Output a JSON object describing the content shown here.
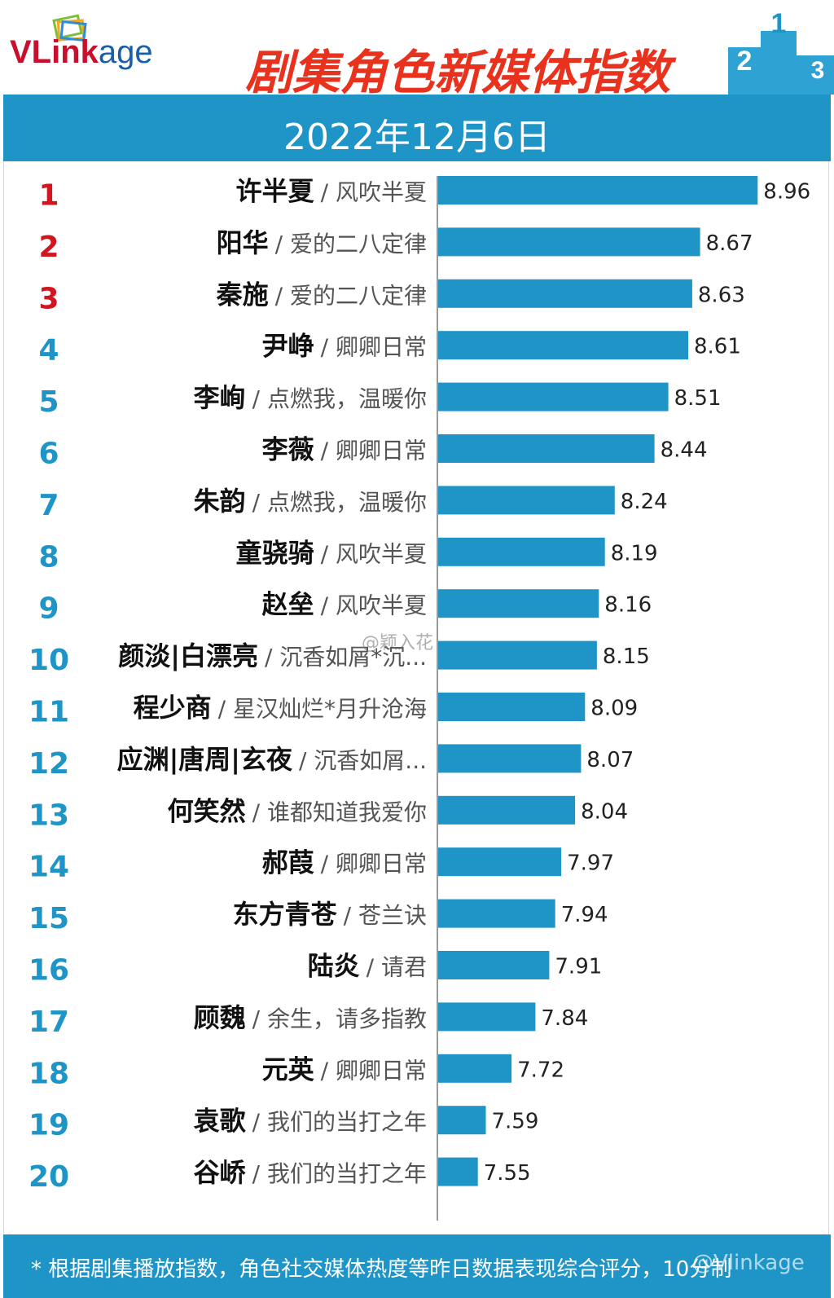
{
  "header": {
    "logo_text": "VLinkage",
    "logo_part1": "VLink",
    "logo_part2": "age",
    "title": "剧集角色新媒体指数",
    "date": "2022年12月6日",
    "podium_icon": "podium-icon"
  },
  "footer": {
    "note": "* 根据剧集播放指数，角色社交媒体热度等昨日数据表现综合评分，10分制"
  },
  "watermarks": {
    "mid": "@颖入花",
    "bottom": "@Vlinkage"
  },
  "colors": {
    "bar": "#1e95c6",
    "rank_top3": "#d1161f",
    "rank_rest": "#1e95c6",
    "title": "#e8321e"
  },
  "chart_data": {
    "type": "bar",
    "orientation": "horizontal",
    "title": "剧集角色新媒体指数",
    "xlim": [
      7.35,
      9.0
    ],
    "categories": [
      {
        "rank": "1",
        "name": "许半夏",
        "show": "/ 风吹半夏"
      },
      {
        "rank": "2",
        "name": "阳华",
        "show": "/ 爱的二八定律"
      },
      {
        "rank": "3",
        "name": "秦施",
        "show": "/ 爱的二八定律"
      },
      {
        "rank": "4",
        "name": "尹峥",
        "show": "/ 卿卿日常"
      },
      {
        "rank": "5",
        "name": "李峋",
        "show": "/ 点燃我，温暖你"
      },
      {
        "rank": "6",
        "name": "李薇",
        "show": "/ 卿卿日常"
      },
      {
        "rank": "7",
        "name": "朱韵",
        "show": "/ 点燃我，温暖你"
      },
      {
        "rank": "8",
        "name": "童骁骑",
        "show": "/ 风吹半夏"
      },
      {
        "rank": "9",
        "name": "赵垒",
        "show": "/ 风吹半夏"
      },
      {
        "rank": "10",
        "name": "颜淡|白漂亮",
        "show": "/ 沉香如屑*沉..."
      },
      {
        "rank": "11",
        "name": "程少商",
        "show": "/ 星汉灿烂*月升沧海"
      },
      {
        "rank": "12",
        "name": "应渊|唐周|玄夜",
        "show": "/ 沉香如屑..."
      },
      {
        "rank": "13",
        "name": "何笑然",
        "show": "/ 谁都知道我爱你"
      },
      {
        "rank": "14",
        "name": "郝葭",
        "show": "/ 卿卿日常"
      },
      {
        "rank": "15",
        "name": "东方青苍",
        "show": "/ 苍兰诀"
      },
      {
        "rank": "16",
        "name": "陆炎",
        "show": "/ 请君"
      },
      {
        "rank": "17",
        "name": "顾魏",
        "show": "/ 余生，请多指教"
      },
      {
        "rank": "18",
        "name": "元英",
        "show": "/ 卿卿日常"
      },
      {
        "rank": "19",
        "name": "袁歌",
        "show": "/ 我们的当打之年"
      },
      {
        "rank": "20",
        "name": "谷峤",
        "show": "/ 我们的当打之年"
      }
    ],
    "values": [
      8.96,
      8.67,
      8.63,
      8.61,
      8.51,
      8.44,
      8.24,
      8.19,
      8.16,
      8.15,
      8.09,
      8.07,
      8.04,
      7.97,
      7.94,
      7.91,
      7.84,
      7.72,
      7.59,
      7.55
    ],
    "value_labels": [
      "8.96",
      "8.67",
      "8.63",
      "8.61",
      "8.51",
      "8.44",
      "8.24",
      "8.19",
      "8.16",
      "8.15",
      "8.09",
      "8.07",
      "8.04",
      "7.97",
      "7.94",
      "7.91",
      "7.84",
      "7.72",
      "7.59",
      "7.55"
    ]
  }
}
